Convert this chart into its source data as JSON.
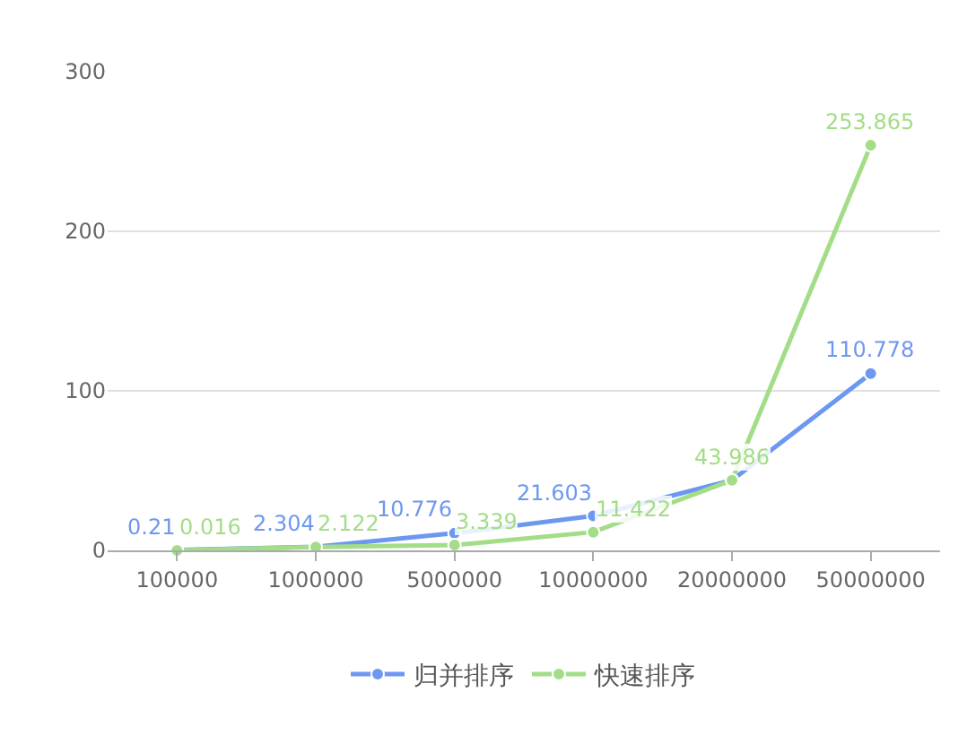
{
  "chart_data": {
    "type": "line",
    "categories": [
      "100000",
      "1000000",
      "5000000",
      "10000000",
      "20000000",
      "50000000"
    ],
    "series": [
      {
        "name": "归并排序",
        "color": "#6e97f0",
        "values": [
          0.21,
          2.304,
          10.776,
          21.603,
          44,
          110.778
        ],
        "value_labels": [
          "0.21",
          "2.304",
          "10.776",
          "21.603",
          null,
          "110.778"
        ]
      },
      {
        "name": "快速排序",
        "color": "#a3dd87",
        "values": [
          0.016,
          2.122,
          3.339,
          11.422,
          43.986,
          253.865
        ],
        "value_labels": [
          "0.016",
          "2.122",
          "3.339",
          "11.422",
          "43.986",
          "253.865"
        ]
      }
    ],
    "ylim": [
      0,
      300
    ],
    "yticks": [
      0,
      100,
      200,
      300
    ],
    "grid": "y",
    "legend": "bottom",
    "marker": "circle",
    "line_style": "solid"
  }
}
